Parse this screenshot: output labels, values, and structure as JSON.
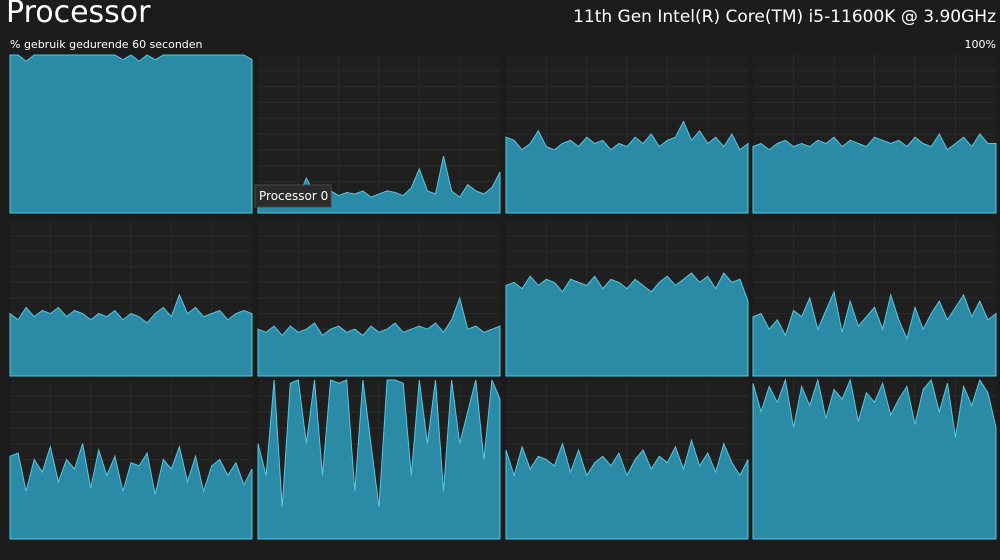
{
  "header": {
    "title": "Processor",
    "cpu_name": "11th Gen Intel(R) Core(TM) i5-11600K @ 3.90GHz"
  },
  "graph_label": "% gebruik gedurende 60 seconden",
  "max_label": "100%",
  "ylim": [
    0,
    100
  ],
  "tooltip": "Processor 0",
  "processors": [
    {
      "values": [
        100,
        100,
        96,
        100,
        100,
        100,
        100,
        100,
        100,
        100,
        100,
        100,
        100,
        100,
        97,
        100,
        96,
        100,
        97,
        100,
        100,
        100,
        100,
        100,
        100,
        100,
        100,
        100,
        100,
        100,
        97
      ]
    },
    {
      "values": [
        8,
        10,
        9,
        12,
        14,
        10,
        22,
        12,
        10,
        14,
        11,
        13,
        12,
        14,
        10,
        12,
        14,
        13,
        11,
        16,
        28,
        14,
        12,
        36,
        14,
        10,
        18,
        14,
        12,
        16,
        26
      ]
    },
    {
      "values": [
        48,
        46,
        40,
        44,
        52,
        42,
        40,
        44,
        46,
        42,
        48,
        44,
        46,
        40,
        44,
        42,
        48,
        44,
        50,
        42,
        46,
        48,
        58,
        46,
        52,
        44,
        48,
        42,
        50,
        40,
        44
      ]
    },
    {
      "values": [
        42,
        44,
        40,
        44,
        46,
        42,
        44,
        42,
        46,
        44,
        48,
        42,
        46,
        44,
        42,
        48,
        46,
        44,
        46,
        42,
        48,
        44,
        42,
        50,
        40,
        44,
        48,
        42,
        50,
        44,
        44
      ]
    },
    {
      "values": [
        40,
        36,
        44,
        38,
        42,
        40,
        44,
        38,
        42,
        40,
        36,
        40,
        38,
        42,
        36,
        40,
        38,
        34,
        40,
        44,
        38,
        52,
        40,
        44,
        38,
        40,
        42,
        36,
        40,
        42,
        40
      ]
    },
    {
      "values": [
        30,
        28,
        32,
        26,
        32,
        28,
        30,
        34,
        26,
        30,
        32,
        28,
        30,
        26,
        32,
        28,
        30,
        34,
        28,
        30,
        32,
        30,
        34,
        28,
        36,
        50,
        30,
        32,
        28,
        30,
        32
      ]
    },
    {
      "values": [
        58,
        60,
        56,
        64,
        58,
        62,
        60,
        54,
        62,
        60,
        58,
        64,
        56,
        62,
        60,
        56,
        62,
        58,
        54,
        60,
        64,
        58,
        62,
        66,
        60,
        64,
        56,
        66,
        60,
        62,
        48
      ]
    },
    {
      "values": [
        38,
        40,
        30,
        36,
        26,
        42,
        38,
        50,
        30,
        42,
        54,
        28,
        48,
        32,
        38,
        44,
        30,
        52,
        36,
        24,
        44,
        30,
        40,
        48,
        36,
        44,
        52,
        38,
        48,
        36,
        40
      ]
    },
    {
      "values": [
        52,
        54,
        30,
        50,
        42,
        58,
        36,
        50,
        44,
        60,
        32,
        56,
        40,
        52,
        30,
        48,
        46,
        54,
        28,
        50,
        44,
        58,
        36,
        52,
        30,
        46,
        50,
        40,
        48,
        34,
        44
      ]
    },
    {
      "values": [
        60,
        40,
        100,
        20,
        98,
        100,
        60,
        100,
        40,
        100,
        98,
        100,
        30,
        100,
        60,
        20,
        100,
        100,
        98,
        40,
        100,
        60,
        100,
        30,
        100,
        60,
        80,
        100,
        50,
        100,
        88
      ]
    },
    {
      "values": [
        56,
        40,
        58,
        44,
        52,
        50,
        46,
        60,
        42,
        56,
        40,
        48,
        52,
        46,
        54,
        40,
        50,
        56,
        44,
        52,
        48,
        58,
        44,
        62,
        46,
        54,
        42,
        60,
        48,
        40,
        50
      ]
    },
    {
      "values": [
        98,
        80,
        96,
        86,
        100,
        70,
        96,
        84,
        100,
        76,
        94,
        88,
        100,
        74,
        92,
        86,
        98,
        78,
        88,
        96,
        72,
        94,
        100,
        80,
        98,
        64,
        96,
        84,
        100,
        92,
        70
      ]
    }
  ]
}
